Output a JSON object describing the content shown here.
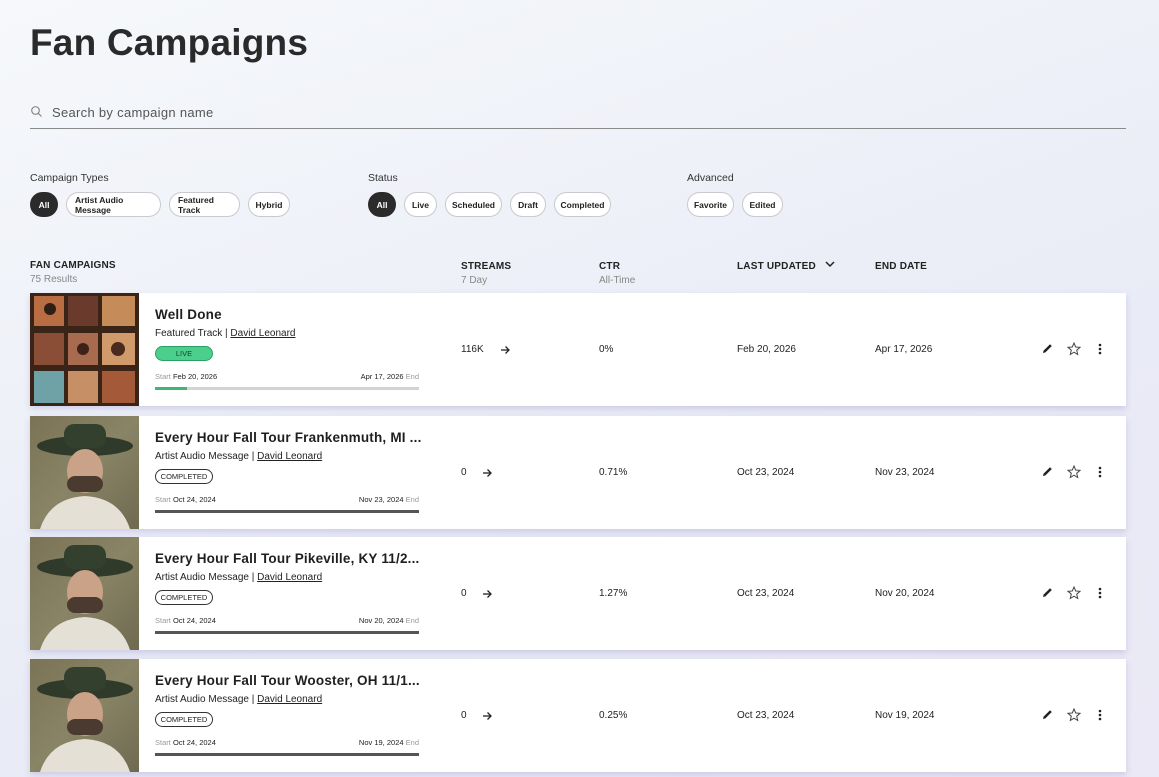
{
  "page": {
    "title": "Fan Campaigns"
  },
  "search": {
    "placeholder": "Search by campaign name",
    "value": ""
  },
  "filters": {
    "campaign_types": {
      "label": "Campaign Types",
      "chips": [
        "All",
        "Artist Audio Message",
        "Featured Track",
        "Hybrid"
      ]
    },
    "status": {
      "label": "Status",
      "chips": [
        "All",
        "Live",
        "Scheduled",
        "Draft",
        "Completed"
      ]
    },
    "advanced": {
      "label": "Advanced",
      "chips": [
        "Favorite",
        "Edited"
      ]
    }
  },
  "table": {
    "title": "FAN CAMPAIGNS",
    "results": "75 Results",
    "streams": {
      "label": "STREAMS",
      "sub": "7 Day"
    },
    "ctr": {
      "label": "CTR",
      "sub": "All-Time"
    },
    "last_updated": "LAST UPDATED",
    "end_date": "END DATE"
  },
  "rows": [
    {
      "title": "Well Done",
      "type": "Featured Track",
      "artist": "David Leonard",
      "status": "LIVE",
      "start_label": "Start",
      "start": "Feb 20, 2026",
      "end": "Apr 17, 2026",
      "end_label": "End",
      "progress": 0.12,
      "streams": "116K",
      "ctr": "0%",
      "last_updated": "Feb 20, 2026",
      "end_date": "Apr 17, 2026"
    },
    {
      "title": "Every Hour Fall Tour Frankenmuth, MI ...",
      "type": "Artist Audio Message",
      "artist": "David Leonard",
      "status": "COMPLETED",
      "start_label": "Start",
      "start": "Oct 24, 2024",
      "end": "Nov 23, 2024",
      "end_label": "End",
      "progress": 1.0,
      "streams": "0",
      "ctr": "0.71%",
      "last_updated": "Oct 23, 2024",
      "end_date": "Nov 23, 2024"
    },
    {
      "title": "Every Hour Fall Tour Pikeville, KY 11/2...",
      "type": "Artist Audio Message",
      "artist": "David Leonard",
      "status": "COMPLETED",
      "start_label": "Start",
      "start": "Oct 24, 2024",
      "end": "Nov 20, 2024",
      "end_label": "End",
      "progress": 1.0,
      "streams": "0",
      "ctr": "1.27%",
      "last_updated": "Oct 23, 2024",
      "end_date": "Nov 20, 2024"
    },
    {
      "title": "Every Hour Fall Tour Wooster, OH 11/1...",
      "type": "Artist Audio Message",
      "artist": "David Leonard",
      "status": "COMPLETED",
      "start_label": "Start",
      "start": "Oct 24, 2024",
      "end": "Nov 19, 2024",
      "end_label": "End",
      "progress": 1.0,
      "streams": "0",
      "ctr": "0.25%",
      "last_updated": "Oct 23, 2024",
      "end_date": "Nov 19, 2024"
    }
  ],
  "colors": {
    "live": "#4ccf8d",
    "active_chip": "#2b2b2b"
  },
  "icons": {
    "search": "search-icon",
    "sort": "chevron-down-icon",
    "arrow": "arrow-right-icon",
    "edit": "pencil-icon",
    "favorite": "star-outline-icon",
    "more": "more-vertical-icon"
  }
}
